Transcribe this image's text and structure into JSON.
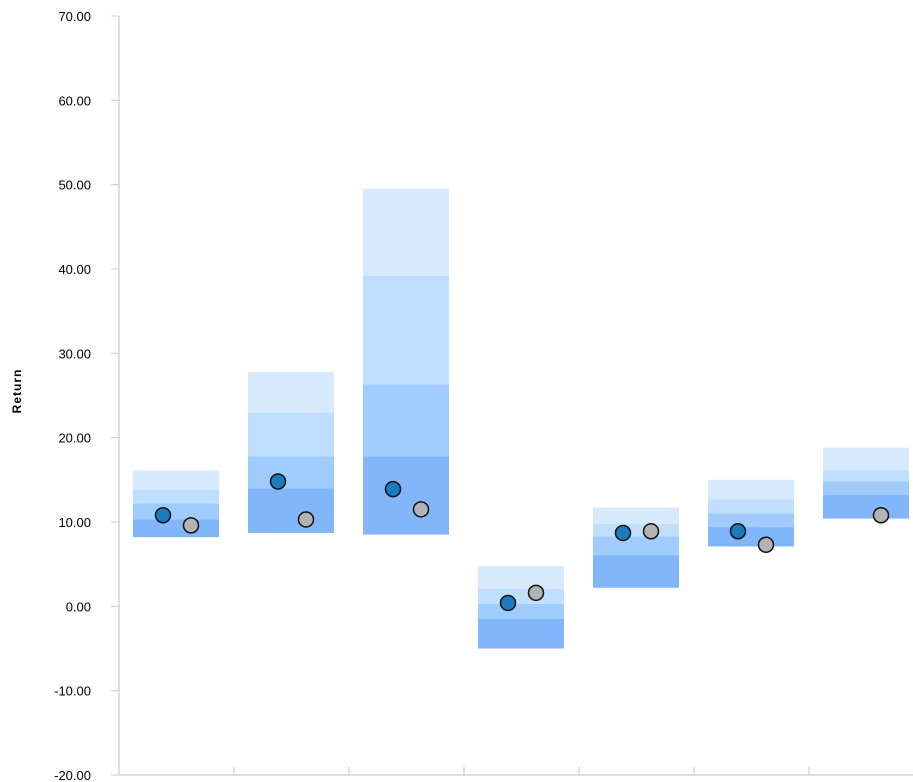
{
  "chart_data": {
    "type": "floating-bar-range",
    "title": "",
    "xlabel": "",
    "ylabel": "Return",
    "ylim": [
      -20,
      70
    ],
    "y_ticks": [
      70,
      60,
      50,
      40,
      30,
      20,
      10,
      0,
      -10,
      -20
    ],
    "y_tick_labels": [
      "70.00",
      "60.00",
      "50.00",
      "40.00",
      "30.00",
      "20.00",
      "10.00",
      "0.00",
      "-10.00",
      "-20.00"
    ],
    "grid": false,
    "band_colors": [
      "#82b6fb",
      "#9fcbfd",
      "#c0defd",
      "#d6e9fd"
    ],
    "groups": [
      {
        "bands": [
          8.2,
          10.3,
          12.2,
          13.8,
          16.1
        ],
        "blue_point": 10.8,
        "gray_point": 9.6
      },
      {
        "bands": [
          8.7,
          14.0,
          17.8,
          23.0,
          27.8
        ],
        "blue_point": 14.8,
        "gray_point": 10.3
      },
      {
        "bands": [
          8.5,
          17.8,
          26.3,
          39.2,
          49.5
        ],
        "blue_point": 13.9,
        "gray_point": 11.5
      },
      {
        "bands": [
          -5.0,
          -1.5,
          0.3,
          2.1,
          4.8
        ],
        "blue_point": 0.4,
        "gray_point": 1.6
      },
      {
        "bands": [
          2.2,
          6.1,
          8.3,
          9.8,
          11.7
        ],
        "blue_point": 8.7,
        "gray_point": 8.9
      },
      {
        "bands": [
          7.1,
          9.4,
          11.0,
          12.7,
          15.0
        ],
        "blue_point": 8.9,
        "gray_point": 7.3
      },
      {
        "bands": [
          10.4,
          13.2,
          14.8,
          16.2,
          18.8
        ],
        "blue_point": null,
        "gray_point": 10.8
      }
    ],
    "series": [
      {
        "color": "#1a7bbf"
      },
      {
        "color": "#b3b3b3"
      }
    ]
  }
}
